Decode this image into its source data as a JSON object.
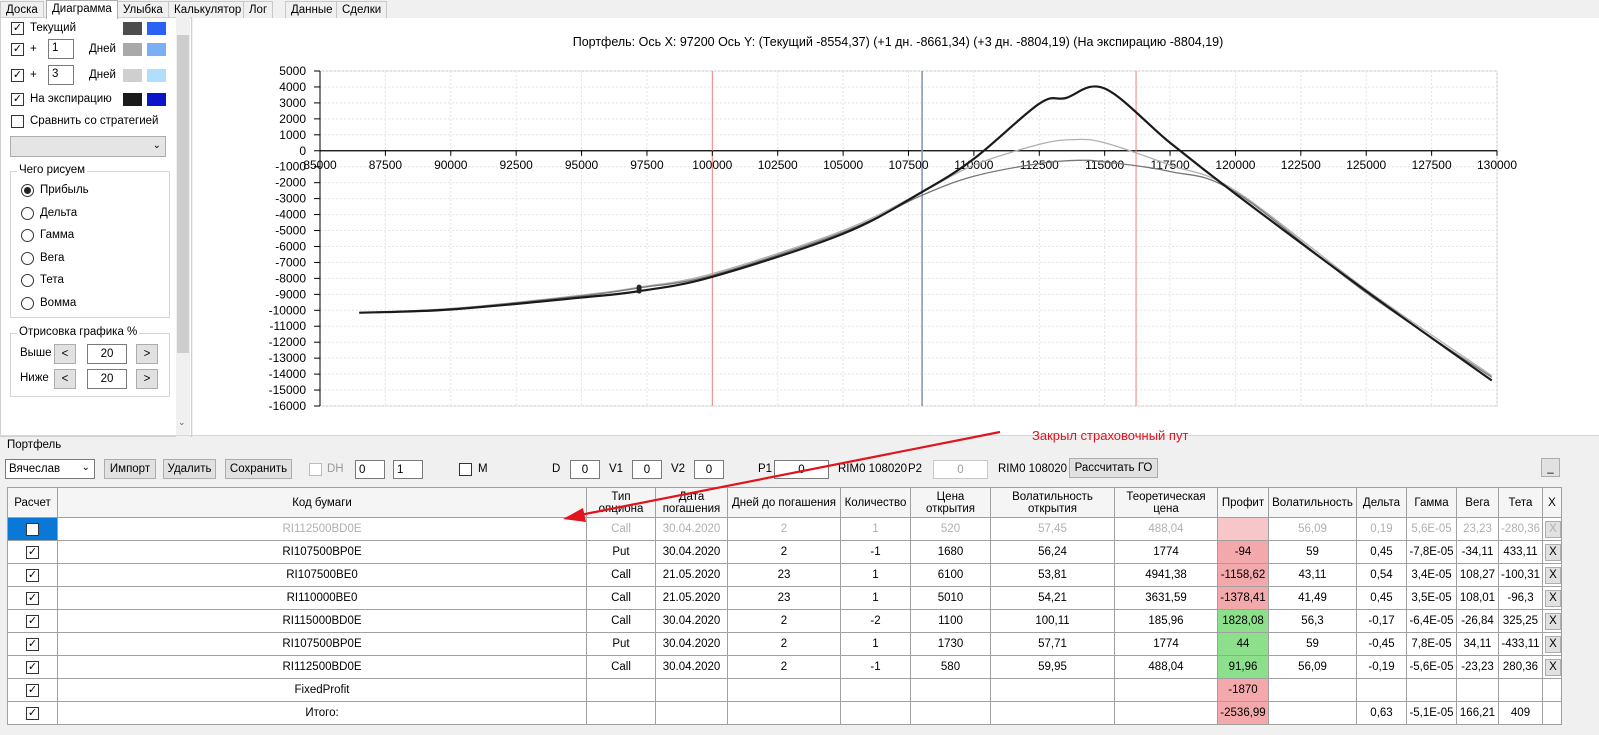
{
  "tabs": [
    "Доска",
    "Диаграмма",
    "Улыбка",
    "Калькулятор",
    "Лог",
    "Данные",
    "Сделки"
  ],
  "left": {
    "current_label": "Текущий",
    "plus": "+",
    "days1_value": "1",
    "days3_value": "3",
    "days_label": "Дней",
    "expiry_label": "На экспирацию",
    "compare_label": "Сравнить со стратегией",
    "draw_group_title": "Чего рисуем",
    "radios": [
      "Прибыль",
      "Дельта",
      "Гамма",
      "Вега",
      "Тета",
      "Вомма"
    ],
    "render_group_title": "Отрисовка графика %",
    "above_label": "Выше",
    "below_label": "Ниже",
    "above_value": "20",
    "below_value": "20",
    "left_arrow": "<",
    "right_arrow": ">"
  },
  "chart_data": {
    "type": "line",
    "title": "Портфель: Ось X: 97200 Ось Y:  (Текущий -8554,37)  (+1 дн. -8661,34)  (+3 дн. -8804,19)  (На экспирацию -8804,19)",
    "xlim": [
      85000,
      130000
    ],
    "ylim": [
      -16000,
      5000
    ],
    "xticks": [
      85000,
      87500,
      90000,
      92500,
      95000,
      97500,
      100000,
      102500,
      105000,
      107500,
      110000,
      112500,
      115000,
      117500,
      120000,
      122500,
      125000,
      127500,
      130000
    ],
    "yticks": [
      5000,
      4000,
      3000,
      2000,
      1000,
      0,
      -1000,
      -2000,
      -3000,
      -4000,
      -5000,
      -6000,
      -7000,
      -8000,
      -9000,
      -10000,
      -11000,
      -12000,
      -13000,
      -14000,
      -15000,
      -16000
    ],
    "vlines_red": [
      100000,
      116200
    ],
    "vline_current": 108020,
    "grid": true,
    "series": [
      {
        "color": "#1a1a1a",
        "x": [
          86500,
          90000,
          95000,
          97200,
          100000,
          105000,
          108000,
          110000,
          112500,
          113500,
          115000,
          117500,
          120000,
          125000,
          129800
        ],
        "y": [
          -10150,
          -9950,
          -9200,
          -8800,
          -7900,
          -5200,
          -2600,
          -500,
          2950,
          3300,
          3900,
          500,
          -2700,
          -8800,
          -14400
        ]
      },
      {
        "color": "#777777",
        "x": [
          86500,
          90000,
          95000,
          97200,
          100000,
          105000,
          108000,
          110000,
          112500,
          114000,
          115000,
          117500,
          120000,
          125000,
          129800
        ],
        "y": [
          -10150,
          -9900,
          -9100,
          -8600,
          -7800,
          -5100,
          -2800,
          -1600,
          -800,
          -600,
          -700,
          -1300,
          -2600,
          -8900,
          -14200
        ]
      },
      {
        "color": "#b0b0b0",
        "x": [
          86500,
          90000,
          95000,
          97200,
          100000,
          105000,
          108000,
          110000,
          112500,
          113800,
          115000,
          117500,
          120000,
          125000,
          129800
        ],
        "y": [
          -10150,
          -9900,
          -9050,
          -8550,
          -7700,
          -5000,
          -2600,
          -900,
          400,
          700,
          500,
          -900,
          -2500,
          -8700,
          -14100
        ]
      }
    ]
  },
  "toolbar": {
    "portfolio_label": "Портфель",
    "account_value": "Вячеслав",
    "import": "Импорт",
    "delete": "Удалить",
    "save": "Сохранить",
    "dh": "DH",
    "dh_val1": "0",
    "dh_val2": "1",
    "m": "M",
    "d": "D",
    "d_val": "0",
    "v1": "V1",
    "v1_val": "0",
    "v2": "V2",
    "v2_val": "0",
    "p1": "P1",
    "p1_val": "0",
    "rim1": "RIM0 108020",
    "p2": "P2",
    "p2_val": "0",
    "rim2": "RIM0 108020",
    "calc_go": "Рассчитать ГО",
    "min": "_"
  },
  "annotation": "Закрыл страховочный пут",
  "table": {
    "headers": [
      "Расчет",
      "Код бумаги",
      "Тип опциона",
      "Дата погашения",
      "Дней до погашения",
      "Количество",
      "Цена открытия",
      "Волатильность открытия",
      "Теоретическая цена",
      "Профит",
      "Волатильность",
      "Дельта",
      "Гамма",
      "Вега",
      "Тета",
      "X"
    ],
    "rows": [
      [
        "RI112500BD0E",
        "Call",
        "30.04.2020",
        "2",
        "1",
        "520",
        "57,45",
        "488,04",
        "",
        "56,09",
        "0,19",
        "5,6E-05",
        "23,23",
        "-280,36"
      ],
      [
        "RI107500BP0E",
        "Put",
        "30.04.2020",
        "2",
        "-1",
        "1680",
        "56,24",
        "1774",
        "-94",
        "59",
        "0,45",
        "-7,8E-05",
        "-34,11",
        "433,11"
      ],
      [
        "RI107500BE0",
        "Call",
        "21.05.2020",
        "23",
        "1",
        "6100",
        "53,81",
        "4941,38",
        "-1158,62",
        "43,11",
        "0,54",
        "3,4E-05",
        "108,27",
        "-100,31"
      ],
      [
        "RI110000BE0",
        "Call",
        "21.05.2020",
        "23",
        "1",
        "5010",
        "54,21",
        "3631,59",
        "-1378,41",
        "41,49",
        "0,45",
        "3,5E-05",
        "108,01",
        "-96,3"
      ],
      [
        "RI115000BD0E",
        "Call",
        "30.04.2020",
        "2",
        "-2",
        "1100",
        "100,11",
        "185,96",
        "1828,08",
        "56,3",
        "-0,17",
        "-6,4E-05",
        "-26,84",
        "325,25"
      ],
      [
        "RI107500BP0E",
        "Put",
        "30.04.2020",
        "2",
        "1",
        "1730",
        "57,71",
        "1774",
        "44",
        "59",
        "-0,45",
        "7,8E-05",
        "34,11",
        "-433,11"
      ],
      [
        "RI112500BD0E",
        "Call",
        "30.04.2020",
        "2",
        "-1",
        "580",
        "59,95",
        "488,04",
        "91,96",
        "56,09",
        "-0,19",
        "-5,6E-05",
        "-23,23",
        "280,36"
      ],
      [
        "FixedProfit",
        "",
        "",
        "",
        "",
        "",
        "",
        "",
        "-1870",
        "",
        "",
        "",
        "",
        ""
      ],
      [
        "Итого:",
        "",
        "",
        "",
        "",
        "",
        "",
        "",
        "-2536,99",
        "",
        "0,63",
        "-5,1E-05",
        "166,21",
        "409"
      ]
    ],
    "profit_colors": [
      "red",
      "red",
      "red",
      "red",
      "green",
      "green",
      "green",
      "red",
      "red"
    ],
    "checked": [
      false,
      true,
      true,
      true,
      true,
      true,
      true,
      true,
      true
    ],
    "x_label": "X",
    "check_mark": "✓"
  }
}
